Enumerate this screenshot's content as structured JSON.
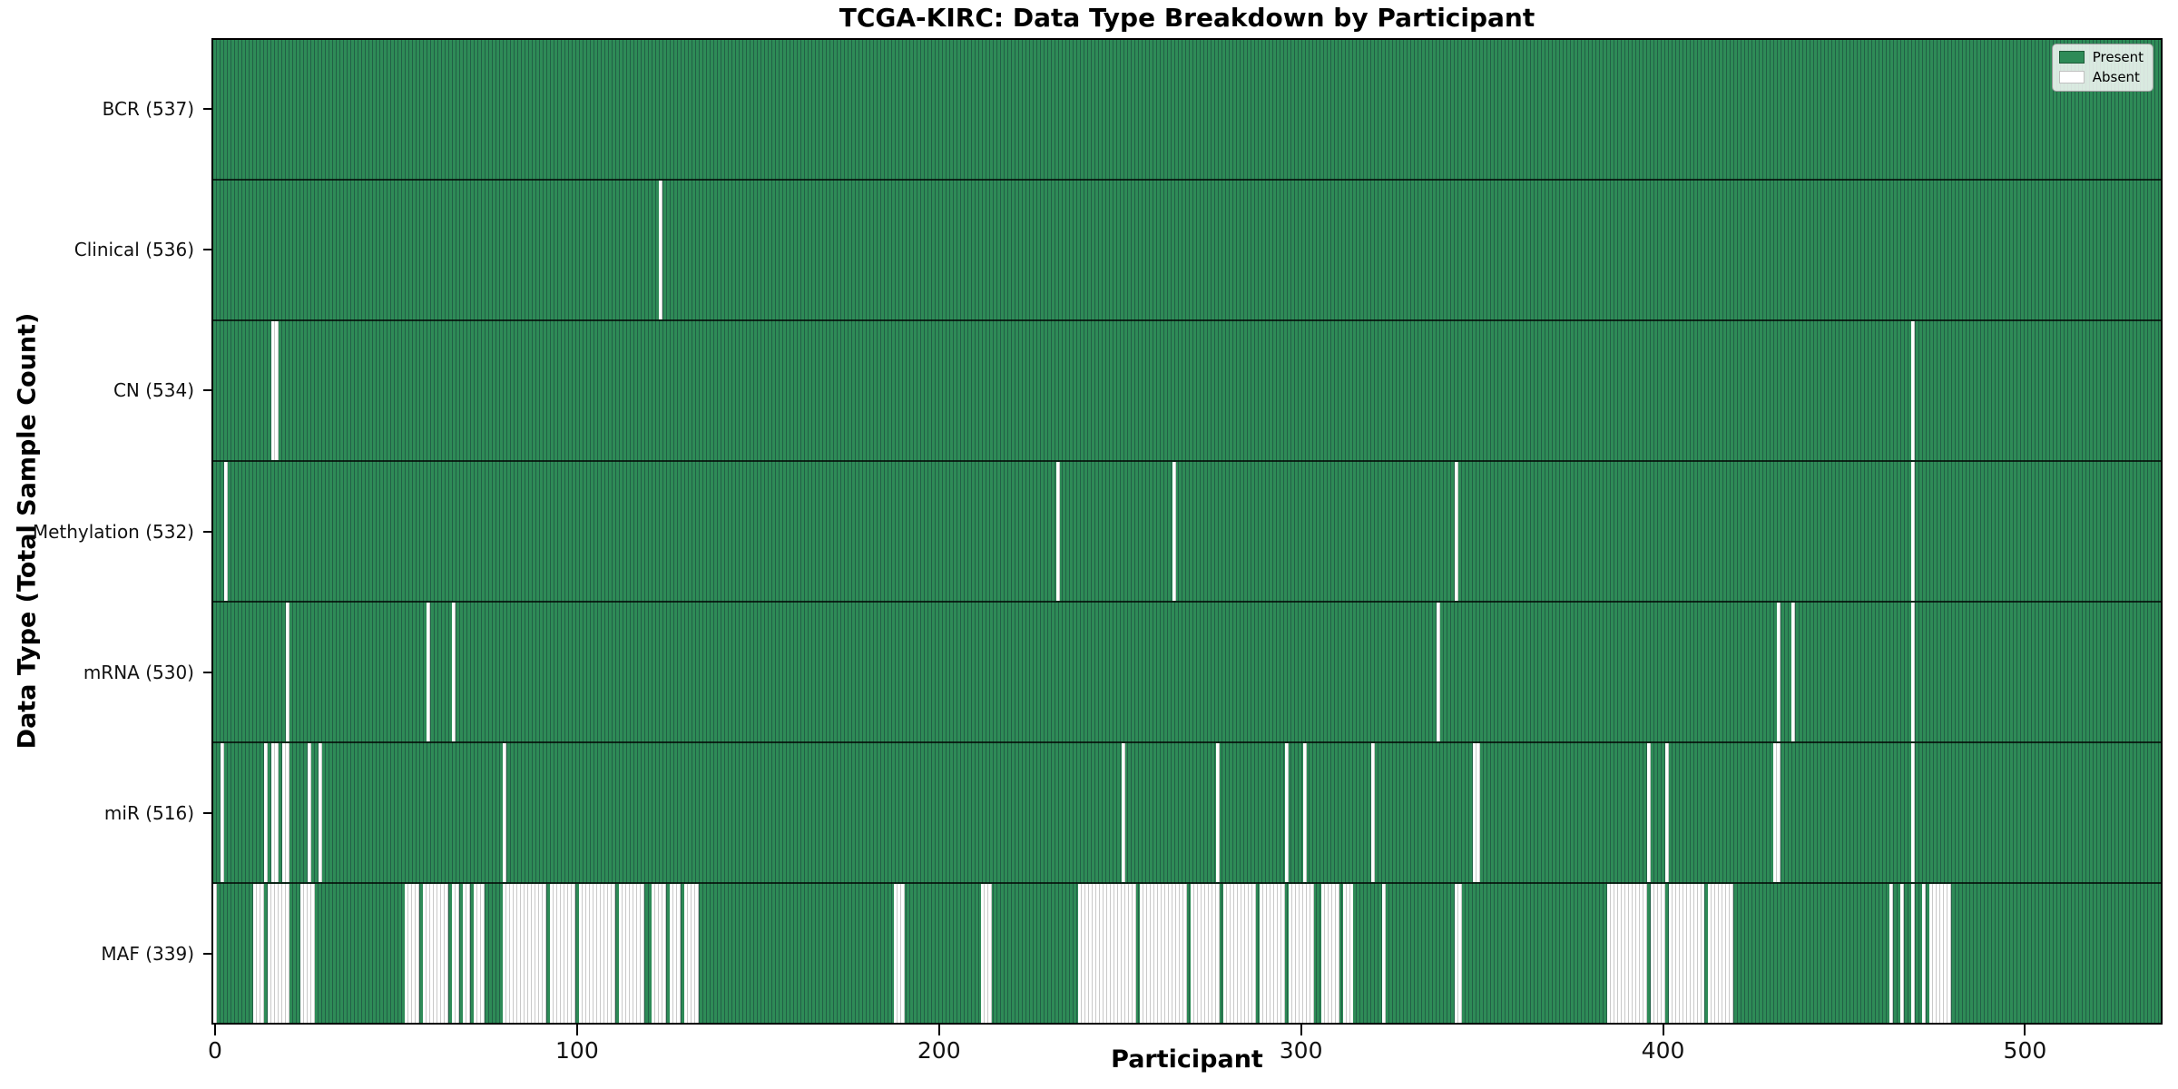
{
  "title": "TCGA-KIRC: Data Type Breakdown by Participant",
  "xlabel": "Participant",
  "ylabel": "Data Type (Total Sample Count)",
  "legend": {
    "present_label": "Present",
    "absent_label": "Absent"
  },
  "colors": {
    "present": "#2e8b57",
    "present_edge": "#226046",
    "absent": "#ffffff",
    "absent_edge": "#c9c9c9",
    "axis": "#000000"
  },
  "chart_data": {
    "type": "heatmap",
    "title": "TCGA-KIRC: Data Type Breakdown by Participant",
    "xlabel": "Participant",
    "ylabel": "Data Type (Total Sample Count)",
    "legend": [
      "Present",
      "Absent"
    ],
    "legend_position": "upper right",
    "grid": false,
    "n_participants": 537,
    "x_ticks": [
      0,
      100,
      200,
      300,
      400,
      500
    ],
    "x_range": [
      0,
      537
    ],
    "rows": [
      {
        "data_type": "BCR",
        "label": "BCR (537)",
        "present_count": 537,
        "absent_count": 0,
        "absent_participants": []
      },
      {
        "data_type": "Clinical",
        "label": "Clinical (536)",
        "present_count": 536,
        "absent_count": 1,
        "absent_participants": [
          [
            123,
            123
          ]
        ]
      },
      {
        "data_type": "CN",
        "label": "CN (534)",
        "present_count": 534,
        "absent_count": 3,
        "absent_participants": [
          [
            16,
            17
          ],
          [
            469,
            469
          ]
        ]
      },
      {
        "data_type": "Methylation",
        "label": "Methylation (532)",
        "present_count": 532,
        "absent_count": 5,
        "absent_participants": [
          [
            3,
            3
          ],
          [
            233,
            233
          ],
          [
            265,
            265
          ],
          [
            343,
            343
          ],
          [
            469,
            469
          ]
        ]
      },
      {
        "data_type": "mRNA",
        "label": "mRNA (530)",
        "present_count": 530,
        "absent_count": 7,
        "absent_participants": [
          [
            20,
            20
          ],
          [
            59,
            59
          ],
          [
            66,
            66
          ],
          [
            338,
            338
          ],
          [
            432,
            432
          ],
          [
            436,
            436
          ],
          [
            469,
            469
          ]
        ]
      },
      {
        "data_type": "miR",
        "label": "miR (516)",
        "present_count": 516,
        "absent_count": 21,
        "absent_participants": [
          [
            2,
            2
          ],
          [
            14,
            14
          ],
          [
            16,
            17
          ],
          [
            19,
            20
          ],
          [
            26,
            26
          ],
          [
            29,
            29
          ],
          [
            80,
            80
          ],
          [
            251,
            251
          ],
          [
            277,
            277
          ],
          [
            296,
            296
          ],
          [
            301,
            301
          ],
          [
            320,
            320
          ],
          [
            348,
            349
          ],
          [
            396,
            396
          ],
          [
            401,
            401
          ],
          [
            431,
            432
          ],
          [
            469,
            469
          ]
        ]
      },
      {
        "data_type": "MAF",
        "label": "MAF (339)",
        "present_count": 339,
        "absent_count": 198,
        "absent_participants": [
          [
            0,
            0
          ],
          [
            11,
            13
          ],
          [
            15,
            20
          ],
          [
            24,
            27
          ],
          [
            53,
            56
          ],
          [
            58,
            64
          ],
          [
            66,
            67
          ],
          [
            69,
            70
          ],
          [
            72,
            74
          ],
          [
            80,
            91
          ],
          [
            93,
            99
          ],
          [
            101,
            110
          ],
          [
            112,
            118
          ],
          [
            121,
            124
          ],
          [
            126,
            128
          ],
          [
            130,
            133
          ],
          [
            188,
            190
          ],
          [
            212,
            214
          ],
          [
            239,
            254
          ],
          [
            256,
            268
          ],
          [
            270,
            277
          ],
          [
            279,
            287
          ],
          [
            289,
            295
          ],
          [
            297,
            303
          ],
          [
            306,
            310
          ],
          [
            312,
            314
          ],
          [
            323,
            323
          ],
          [
            343,
            344
          ],
          [
            385,
            395
          ],
          [
            397,
            400
          ],
          [
            402,
            411
          ],
          [
            413,
            419
          ],
          [
            463,
            463
          ],
          [
            466,
            466
          ],
          [
            469,
            469
          ],
          [
            472,
            472
          ],
          [
            474,
            479
          ]
        ]
      }
    ]
  }
}
